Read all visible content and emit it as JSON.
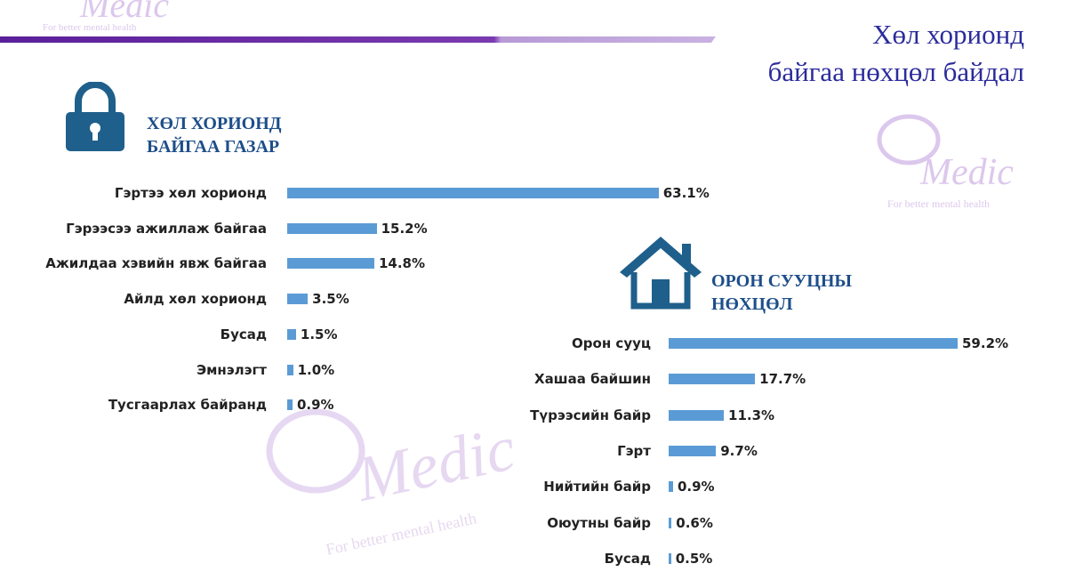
{
  "header": {
    "title_lines": [
      "Хөл хорионд",
      "байгаа нөхцөл байдал"
    ]
  },
  "brand": {
    "name": "Medic",
    "tagline": "For better mental health"
  },
  "chart_data": [
    {
      "type": "bar",
      "orientation": "horizontal",
      "title": "ХӨЛ ХОРИОНД БАЙГАА ГАЗАР",
      "color": "#5b9bd5",
      "categories": [
        "Гэртээ хөл хорионд",
        "Гэрээсээ ажиллаж байгаа",
        "Ажилдаа хэвийн явж байгаа",
        "Айлд хөл хорионд",
        "Бусад",
        "Эмнэлэгт",
        "Тусгаарлах байранд"
      ],
      "values": [
        63.1,
        15.2,
        14.8,
        3.5,
        1.5,
        1.0,
        0.9
      ],
      "value_labels": [
        "63.1%",
        "15.2%",
        "14.8%",
        "3.5%",
        "1.5%",
        "1.0%",
        "0.9%"
      ]
    },
    {
      "type": "bar",
      "orientation": "horizontal",
      "title": "ОРОН СУУЦНЫ НӨХЦӨЛ",
      "color": "#5b9bd5",
      "categories": [
        "Орон сууц",
        "Хашаа байшин",
        "Түрээсийн байр",
        "Гэрт",
        "Нийтийн байр",
        "Оюутны байр",
        "Бусад"
      ],
      "values": [
        59.2,
        17.7,
        11.3,
        9.7,
        0.9,
        0.6,
        0.5
      ],
      "value_labels": [
        "59.2%",
        "17.7%",
        "11.3%",
        "9.7%",
        "0.9%",
        "0.6%",
        "0.5%"
      ]
    }
  ]
}
